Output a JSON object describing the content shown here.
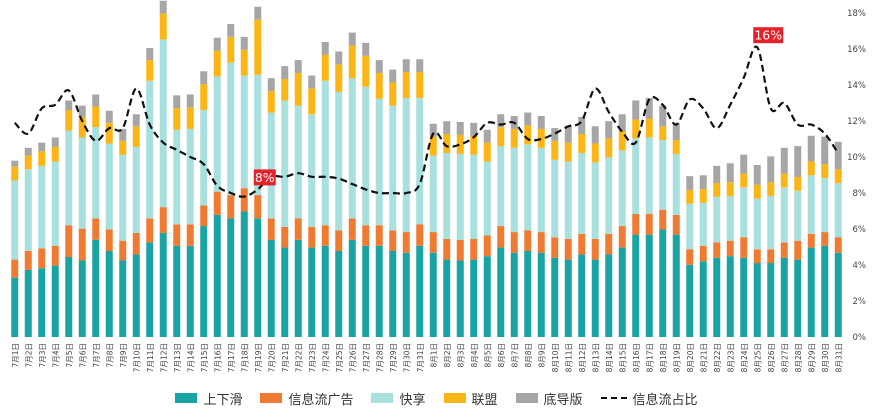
{
  "chart_data": {
    "type": "bar",
    "stacked": true,
    "title": "",
    "xlabel": "",
    "ylabel": "",
    "y2label": "",
    "y2lim": [
      0,
      18
    ],
    "y2ticks": [
      "0%",
      "2%",
      "4%",
      "6%",
      "8%",
      "10%",
      "12%",
      "14%",
      "16%",
      "18%"
    ],
    "categories": [
      "7月1日",
      "7月2日",
      "7月3日",
      "7月4日",
      "7月5日",
      "7月6日",
      "7月7日",
      "7月8日",
      "7月9日",
      "7月10日",
      "7月11日",
      "7月12日",
      "7月13日",
      "7月14日",
      "7月15日",
      "7月16日",
      "7月17日",
      "7月18日",
      "7月19日",
      "7月20日",
      "7月21日",
      "7月22日",
      "7月23日",
      "7月24日",
      "7月25日",
      "7月26日",
      "7月27日",
      "7月28日",
      "7月29日",
      "7月30日",
      "7月31日",
      "8月1日",
      "8月2日",
      "8月3日",
      "8月4日",
      "8月5日",
      "8月6日",
      "8月7日",
      "8月8日",
      "8月9日",
      "8月10日",
      "8月11日",
      "8月12日",
      "8月13日",
      "8月14日",
      "8月15日",
      "8月16日",
      "8月17日",
      "8月18日",
      "8月19日",
      "8月20日",
      "8月21日",
      "8月22日",
      "8月23日",
      "8月24日",
      "8月25日",
      "8月26日",
      "8月27日",
      "8月28日",
      "8月29日",
      "8月30日",
      "8月31日"
    ],
    "series": [
      {
        "name": "上下滑",
        "color": "#1aa3a3",
        "values": [
          6.9,
          7.8,
          8.0,
          8.3,
          9.3,
          8.9,
          11.3,
          10.0,
          8.9,
          9.6,
          11.0,
          12.1,
          10.6,
          10.6,
          12.9,
          14.2,
          13.8,
          14.6,
          13.8,
          11.3,
          10.4,
          11.3,
          10.4,
          10.6,
          10.0,
          11.3,
          10.6,
          10.6,
          10.0,
          9.8,
          10.6,
          9.8,
          9.0,
          8.9,
          9.0,
          9.4,
          10.4,
          9.8,
          10.0,
          9.8,
          9.2,
          9.0,
          9.6,
          9.0,
          9.6,
          10.4,
          11.9,
          11.9,
          12.5,
          11.9,
          8.4,
          8.8,
          9.2,
          9.4,
          9.2,
          8.6,
          8.6,
          9.2,
          9.0,
          10.4,
          10.6,
          9.8
        ]
      },
      {
        "name": "信息流广告",
        "color": "#ef7b32",
        "values": [
          2.1,
          2.2,
          2.3,
          2.3,
          3.7,
          3.7,
          2.5,
          2.5,
          2.3,
          2.5,
          2.8,
          3.0,
          2.5,
          2.5,
          2.4,
          2.7,
          2.7,
          2.7,
          2.7,
          2.5,
          2.4,
          2.5,
          2.4,
          2.4,
          2.4,
          2.5,
          2.4,
          2.4,
          2.4,
          2.4,
          2.5,
          2.4,
          2.4,
          2.4,
          2.4,
          2.4,
          2.5,
          2.4,
          2.4,
          2.4,
          2.4,
          2.4,
          2.4,
          2.4,
          2.4,
          2.5,
          2.4,
          2.4,
          2.3,
          2.3,
          1.8,
          1.8,
          1.8,
          1.8,
          2.4,
          1.6,
          1.6,
          1.8,
          2.2,
          1.6,
          1.6,
          1.8
        ]
      },
      {
        "name": "快享",
        "color": "#a8e0e0",
        "values": [
          9.2,
          9.5,
          9.6,
          9.8,
          11.0,
          10.6,
          10.6,
          10.0,
          10.0,
          10.0,
          16.0,
          19.5,
          11.0,
          11.1,
          11.1,
          13.4,
          15.4,
          13.1,
          14.0,
          12.3,
          14.7,
          13.1,
          13.1,
          16.8,
          16.1,
          16.3,
          16.1,
          14.7,
          14.5,
          15.6,
          14.7,
          8.9,
          10.0,
          10.0,
          9.8,
          8.6,
          9.3,
          9.8,
          10.0,
          9.8,
          9.0,
          9.0,
          9.4,
          8.9,
          8.9,
          8.8,
          8.8,
          8.9,
          8.1,
          7.1,
          5.3,
          5.0,
          5.3,
          5.2,
          5.8,
          5.9,
          6.2,
          6.4,
          5.8,
          6.8,
          6.3,
          6.3
        ]
      },
      {
        "name": "联盟",
        "color": "#fbb615",
        "values": [
          1.6,
          1.6,
          1.7,
          1.7,
          2.4,
          2.4,
          2.4,
          2.4,
          1.6,
          2.4,
          2.4,
          3.0,
          2.5,
          2.5,
          3.0,
          3.0,
          3.0,
          3.0,
          6.4,
          2.5,
          2.5,
          3.8,
          3.0,
          3.0,
          3.2,
          3.8,
          3.6,
          3.0,
          2.7,
          3.0,
          3.0,
          2.2,
          2.2,
          2.2,
          2.2,
          2.2,
          2.2,
          2.2,
          2.2,
          2.2,
          2.2,
          2.2,
          2.2,
          2.2,
          2.2,
          2.2,
          2.2,
          2.2,
          1.6,
          1.6,
          1.6,
          1.6,
          1.6,
          1.6,
          1.6,
          1.6,
          1.6,
          1.6,
          1.6,
          1.6,
          1.6,
          1.6
        ]
      },
      {
        "name": "底导版",
        "color": "#a6a6a6",
        "values": [
          0.7,
          0.9,
          1.0,
          1.1,
          1.1,
          1.3,
          1.4,
          1.4,
          1.4,
          1.4,
          1.4,
          1.5,
          1.5,
          1.5,
          1.5,
          1.5,
          1.5,
          1.5,
          1.5,
          1.5,
          1.5,
          1.5,
          1.5,
          1.5,
          1.5,
          1.5,
          1.5,
          1.5,
          1.5,
          1.5,
          1.5,
          1.5,
          1.5,
          1.5,
          1.5,
          1.5,
          1.5,
          1.5,
          1.5,
          1.5,
          1.5,
          2.0,
          2.0,
          2.0,
          2.0,
          2.0,
          2.2,
          2.4,
          2.4,
          2.0,
          1.6,
          1.6,
          2.0,
          2.2,
          2.2,
          2.3,
          3.0,
          3.0,
          3.6,
          3.0,
          3.2,
          3.2
        ]
      }
    ],
    "line": {
      "name": "信息流占比",
      "style": "dashed",
      "color": "#111111",
      "axis": "y2",
      "values": [
        11.9,
        11.3,
        12.7,
        12.9,
        13.7,
        12.0,
        10.9,
        11.6,
        11.6,
        13.8,
        11.8,
        10.8,
        10.4,
        10.0,
        9.6,
        8.4,
        8.0,
        7.8,
        8.2,
        8.9,
        8.9,
        9.1,
        8.9,
        8.9,
        8.8,
        8.5,
        8.2,
        8.0,
        8.0,
        8.0,
        8.5,
        11.3,
        10.6,
        10.7,
        11.1,
        11.9,
        11.8,
        11.9,
        11.0,
        11.0,
        11.3,
        11.7,
        12.0,
        13.8,
        12.5,
        11.4,
        10.8,
        13.2,
        12.9,
        11.8,
        13.2,
        12.7,
        11.6,
        12.9,
        14.4,
        16.1,
        12.7,
        13.0,
        11.8,
        11.8,
        11.3,
        10.2
      ]
    },
    "annotations": [
      {
        "text": "8%",
        "category": "7月19日"
      },
      {
        "text": "16%",
        "category": "8月25日"
      }
    ],
    "legend_position": "bottom"
  }
}
